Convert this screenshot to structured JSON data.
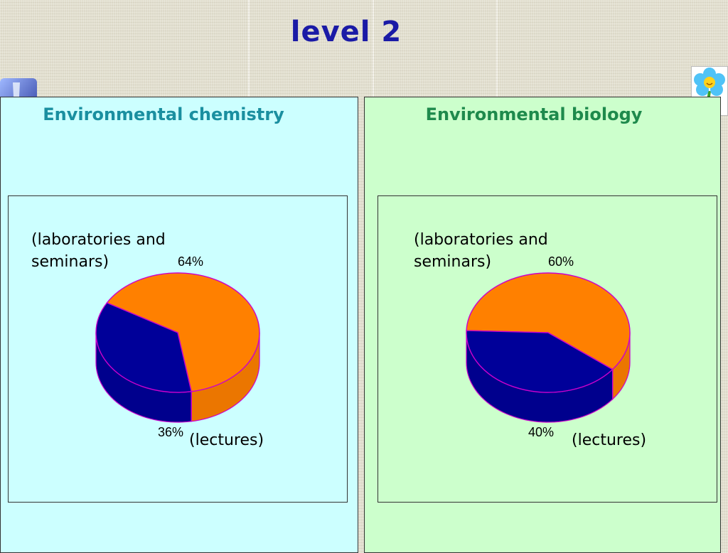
{
  "title": "level 2",
  "colors": {
    "orange": "#ff8000",
    "blue": "#000099",
    "edge": "#cc00cc"
  },
  "icons": {
    "left": "flask-icon",
    "right": "flower-icon"
  },
  "panels": [
    {
      "heading": "Environmental chemistry",
      "top_label": "(laboratories and\nseminars)",
      "bottom_label": "(lectures)"
    },
    {
      "heading": "Environmental biology",
      "top_label": "(laboratories and\nseminars)",
      "bottom_label": "(lectures)"
    }
  ],
  "chart_data": [
    {
      "type": "pie",
      "categories": [
        "(laboratories and seminars)",
        "(lectures)"
      ],
      "values": [
        64,
        36
      ],
      "value_labels": [
        "64%",
        "36%"
      ],
      "colors": [
        "#ff8000",
        "#000099"
      ]
    },
    {
      "type": "pie",
      "categories": [
        "(laboratories and seminars)",
        "(lectures)"
      ],
      "values": [
        60,
        40
      ],
      "value_labels": [
        "60%",
        "40%"
      ],
      "colors": [
        "#ff8000",
        "#000099"
      ]
    }
  ]
}
